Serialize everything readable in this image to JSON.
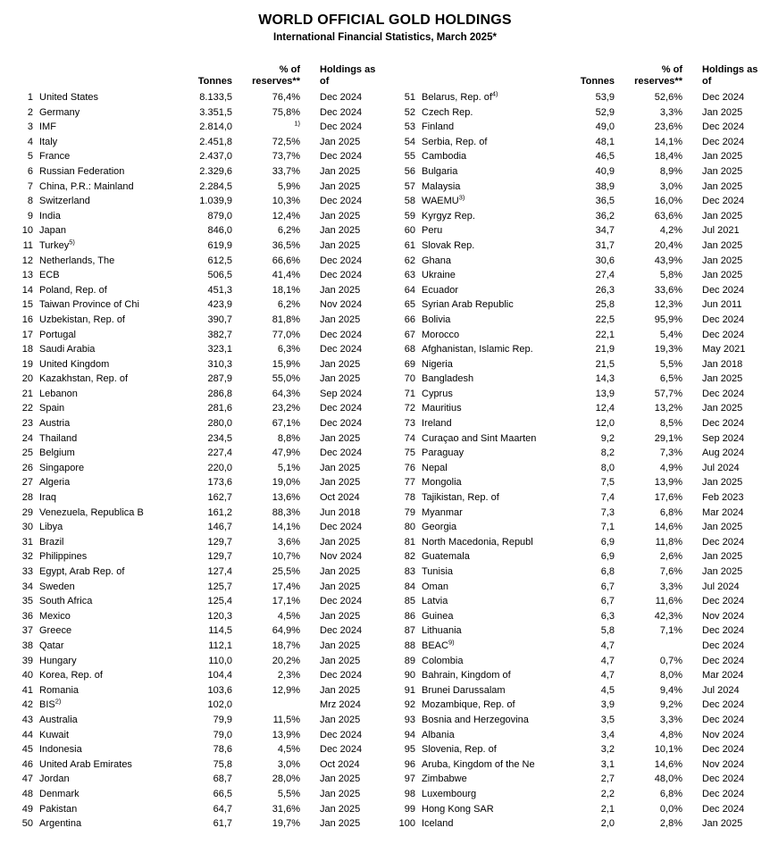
{
  "title": "WORLD OFFICIAL GOLD HOLDINGS",
  "subtitle": "International Financial Statistics, March 2025*",
  "columns": {
    "tonnes": "Tonnes",
    "pct_line1": "% of",
    "pct_line2": "reserves**",
    "holdings_line1": "Holdings as",
    "holdings_line2": "of"
  },
  "row_fields": [
    "rank",
    "name",
    "name_sup",
    "tonnes",
    "pct_reserves",
    "pct_sup",
    "as_of"
  ],
  "left_rows": [
    [
      "1",
      "United States",
      "",
      "8.133,5",
      "76,4%",
      "",
      "Dec 2024"
    ],
    [
      "2",
      "Germany",
      "",
      "3.351,5",
      "75,8%",
      "",
      "Dec 2024"
    ],
    [
      "3",
      "IMF",
      "",
      "2.814,0",
      "",
      "1)",
      "Dec 2024"
    ],
    [
      "4",
      "Italy",
      "",
      "2.451,8",
      "72,5%",
      "",
      "Jan 2025"
    ],
    [
      "5",
      "France",
      "",
      "2.437,0",
      "73,7%",
      "",
      "Dec 2024"
    ],
    [
      "6",
      "Russian Federation",
      "",
      "2.329,6",
      "33,7%",
      "",
      "Jan 2025"
    ],
    [
      "7",
      "China, P.R.: Mainland",
      "",
      "2.284,5",
      "5,9%",
      "",
      "Jan 2025"
    ],
    [
      "8",
      "Switzerland",
      "",
      "1.039,9",
      "10,3%",
      "",
      "Dec 2024"
    ],
    [
      "9",
      "India",
      "",
      "879,0",
      "12,4%",
      "",
      "Jan 2025"
    ],
    [
      "10",
      "Japan",
      "",
      "846,0",
      "6,2%",
      "",
      "Jan 2025"
    ],
    [
      "11",
      "Turkey",
      "5)",
      "619,9",
      "36,5%",
      "",
      "Jan 2025"
    ],
    [
      "12",
      "Netherlands, The",
      "",
      "612,5",
      "66,6%",
      "",
      "Dec 2024"
    ],
    [
      "13",
      "ECB",
      "",
      "506,5",
      "41,4%",
      "",
      "Dec 2024"
    ],
    [
      "14",
      "Poland, Rep. of",
      "",
      "451,3",
      "18,1%",
      "",
      "Jan 2025"
    ],
    [
      "15",
      "Taiwan Province of Chi",
      "",
      "423,9",
      "6,2%",
      "",
      "Nov 2024"
    ],
    [
      "16",
      "Uzbekistan, Rep. of",
      "",
      "390,7",
      "81,8%",
      "",
      "Jan 2025"
    ],
    [
      "17",
      "Portugal",
      "",
      "382,7",
      "77,0%",
      "",
      "Dec 2024"
    ],
    [
      "18",
      "Saudi Arabia",
      "",
      "323,1",
      "6,3%",
      "",
      "Dec 2024"
    ],
    [
      "19",
      "United Kingdom",
      "",
      "310,3",
      "15,9%",
      "",
      "Jan 2025"
    ],
    [
      "20",
      "Kazakhstan, Rep. of",
      "",
      "287,9",
      "55,0%",
      "",
      "Jan 2025"
    ],
    [
      "21",
      "Lebanon",
      "",
      "286,8",
      "64,3%",
      "",
      "Sep 2024"
    ],
    [
      "22",
      "Spain",
      "",
      "281,6",
      "23,2%",
      "",
      "Dec 2024"
    ],
    [
      "23",
      "Austria",
      "",
      "280,0",
      "67,1%",
      "",
      "Dec 2024"
    ],
    [
      "24",
      "Thailand",
      "",
      "234,5",
      "8,8%",
      "",
      "Jan 2025"
    ],
    [
      "25",
      "Belgium",
      "",
      "227,4",
      "47,9%",
      "",
      "Dec 2024"
    ],
    [
      "26",
      "Singapore",
      "",
      "220,0",
      "5,1%",
      "",
      "Jan 2025"
    ],
    [
      "27",
      "Algeria",
      "",
      "173,6",
      "19,0%",
      "",
      "Jan 2025"
    ],
    [
      "28",
      "Iraq",
      "",
      "162,7",
      "13,6%",
      "",
      "Oct 2024"
    ],
    [
      "29",
      "Venezuela, Republica B",
      "",
      "161,2",
      "88,3%",
      "",
      "Jun 2018"
    ],
    [
      "30",
      "Libya",
      "",
      "146,7",
      "14,1%",
      "",
      "Dec 2024"
    ],
    [
      "31",
      "Brazil",
      "",
      "129,7",
      "3,6%",
      "",
      "Jan 2025"
    ],
    [
      "32",
      "Philippines",
      "",
      "129,7",
      "10,7%",
      "",
      "Nov 2024"
    ],
    [
      "33",
      "Egypt, Arab Rep. of",
      "",
      "127,4",
      "25,5%",
      "",
      "Jan 2025"
    ],
    [
      "34",
      "Sweden",
      "",
      "125,7",
      "17,4%",
      "",
      "Jan 2025"
    ],
    [
      "35",
      "South Africa",
      "",
      "125,4",
      "17,1%",
      "",
      "Dec 2024"
    ],
    [
      "36",
      "Mexico",
      "",
      "120,3",
      "4,5%",
      "",
      "Jan 2025"
    ],
    [
      "37",
      "Greece",
      "",
      "114,5",
      "64,9%",
      "",
      "Dec 2024"
    ],
    [
      "38",
      "Qatar",
      "",
      "112,1",
      "18,7%",
      "",
      "Jan 2025"
    ],
    [
      "39",
      "Hungary",
      "",
      "110,0",
      "20,2%",
      "",
      "Jan 2025"
    ],
    [
      "40",
      "Korea, Rep. of",
      "",
      "104,4",
      "2,3%",
      "",
      "Dec 2024"
    ],
    [
      "41",
      "Romania",
      "",
      "103,6",
      "12,9%",
      "",
      "Jan 2025"
    ],
    [
      "42",
      "BIS",
      "2)",
      "102,0",
      "",
      "",
      "Mrz 2024"
    ],
    [
      "43",
      "Australia",
      "",
      "79,9",
      "11,5%",
      "",
      "Jan 2025"
    ],
    [
      "44",
      "Kuwait",
      "",
      "79,0",
      "13,9%",
      "",
      "Dec 2024"
    ],
    [
      "45",
      "Indonesia",
      "",
      "78,6",
      "4,5%",
      "",
      "Dec 2024"
    ],
    [
      "46",
      "United Arab Emirates",
      "",
      "75,8",
      "3,0%",
      "",
      "Oct 2024"
    ],
    [
      "47",
      "Jordan",
      "",
      "68,7",
      "28,0%",
      "",
      "Jan 2025"
    ],
    [
      "48",
      "Denmark",
      "",
      "66,5",
      "5,5%",
      "",
      "Jan 2025"
    ],
    [
      "49",
      "Pakistan",
      "",
      "64,7",
      "31,6%",
      "",
      "Jan 2025"
    ],
    [
      "50",
      "Argentina",
      "",
      "61,7",
      "19,7%",
      "",
      "Jan 2025"
    ]
  ],
  "right_rows": [
    [
      "51",
      "Belarus, Rep. of",
      "4)",
      "53,9",
      "52,6%",
      "",
      "Dec 2024"
    ],
    [
      "52",
      "Czech Rep.",
      "",
      "52,9",
      "3,3%",
      "",
      "Jan 2025"
    ],
    [
      "53",
      "Finland",
      "",
      "49,0",
      "23,6%",
      "",
      "Dec 2024"
    ],
    [
      "54",
      "Serbia, Rep. of",
      "",
      "48,1",
      "14,1%",
      "",
      "Dec 2024"
    ],
    [
      "55",
      "Cambodia",
      "",
      "46,5",
      "18,4%",
      "",
      "Jan 2025"
    ],
    [
      "56",
      "Bulgaria",
      "",
      "40,9",
      "8,9%",
      "",
      "Jan 2025"
    ],
    [
      "57",
      "Malaysia",
      "",
      "38,9",
      "3,0%",
      "",
      "Jan 2025"
    ],
    [
      "58",
      "WAEMU",
      "3)",
      "36,5",
      "16,0%",
      "",
      "Dec 2024"
    ],
    [
      "59",
      "Kyrgyz Rep.",
      "",
      "36,2",
      "63,6%",
      "",
      "Jan 2025"
    ],
    [
      "60",
      "Peru",
      "",
      "34,7",
      "4,2%",
      "",
      "Jul 2021"
    ],
    [
      "61",
      "Slovak Rep.",
      "",
      "31,7",
      "20,4%",
      "",
      "Jan 2025"
    ],
    [
      "62",
      "Ghana",
      "",
      "30,6",
      "43,9%",
      "",
      "Jan 2025"
    ],
    [
      "63",
      "Ukraine",
      "",
      "27,4",
      "5,8%",
      "",
      "Jan 2025"
    ],
    [
      "64",
      "Ecuador",
      "",
      "26,3",
      "33,6%",
      "",
      "Dec 2024"
    ],
    [
      "65",
      "Syrian Arab Republic",
      "",
      "25,8",
      "12,3%",
      "",
      "Jun 2011"
    ],
    [
      "66",
      "Bolivia",
      "",
      "22,5",
      "95,9%",
      "",
      "Dec 2024"
    ],
    [
      "67",
      "Morocco",
      "",
      "22,1",
      "5,4%",
      "",
      "Dec 2024"
    ],
    [
      "68",
      "Afghanistan, Islamic Rep.",
      "",
      "21,9",
      "19,3%",
      "",
      "May 2021"
    ],
    [
      "69",
      "Nigeria",
      "",
      "21,5",
      "5,5%",
      "",
      "Jan 2018"
    ],
    [
      "70",
      "Bangladesh",
      "",
      "14,3",
      "6,5%",
      "",
      "Jan 2025"
    ],
    [
      "71",
      "Cyprus",
      "",
      "13,9",
      "57,7%",
      "",
      "Dec 2024"
    ],
    [
      "72",
      "Mauritius",
      "",
      "12,4",
      "13,2%",
      "",
      "Jan 2025"
    ],
    [
      "73",
      "Ireland",
      "",
      "12,0",
      "8,5%",
      "",
      "Dec 2024"
    ],
    [
      "74",
      "Curaçao and Sint Maarten",
      "",
      "9,2",
      "29,1%",
      "",
      "Sep 2024"
    ],
    [
      "75",
      "Paraguay",
      "",
      "8,2",
      "7,3%",
      "",
      "Aug 2024"
    ],
    [
      "76",
      "Nepal",
      "",
      "8,0",
      "4,9%",
      "",
      "Jul 2024"
    ],
    [
      "77",
      "Mongolia",
      "",
      "7,5",
      "13,9%",
      "",
      "Jan 2025"
    ],
    [
      "78",
      "Tajikistan, Rep. of",
      "",
      "7,4",
      "17,6%",
      "",
      "Feb 2023"
    ],
    [
      "79",
      "Myanmar",
      "",
      "7,3",
      "6,8%",
      "",
      "Mar 2024"
    ],
    [
      "80",
      "Georgia",
      "",
      "7,1",
      "14,6%",
      "",
      "Jan 2025"
    ],
    [
      "81",
      "North Macedonia, Republ",
      "",
      "6,9",
      "11,8%",
      "",
      "Dec 2024"
    ],
    [
      "82",
      "Guatemala",
      "",
      "6,9",
      "2,6%",
      "",
      "Jan 2025"
    ],
    [
      "83",
      "Tunisia",
      "",
      "6,8",
      "7,6%",
      "",
      "Jan 2025"
    ],
    [
      "84",
      "Oman",
      "",
      "6,7",
      "3,3%",
      "",
      "Jul 2024"
    ],
    [
      "85",
      "Latvia",
      "",
      "6,7",
      "11,6%",
      "",
      "Dec 2024"
    ],
    [
      "86",
      "Guinea",
      "",
      "6,3",
      "42,3%",
      "",
      "Nov 2024"
    ],
    [
      "87",
      "Lithuania",
      "",
      "5,8",
      "7,1%",
      "",
      "Dec 2024"
    ],
    [
      "88",
      "BEAC",
      "9)",
      "4,7",
      "",
      "",
      "Dec 2024"
    ],
    [
      "89",
      "Colombia",
      "",
      "4,7",
      "0,7%",
      "",
      "Dec 2024"
    ],
    [
      "90",
      "Bahrain, Kingdom of",
      "",
      "4,7",
      "8,0%",
      "",
      "Mar 2024"
    ],
    [
      "91",
      "Brunei Darussalam",
      "",
      "4,5",
      "9,4%",
      "",
      "Jul 2024"
    ],
    [
      "92",
      "Mozambique, Rep. of",
      "",
      "3,9",
      "9,2%",
      "",
      "Dec 2024"
    ],
    [
      "93",
      "Bosnia and Herzegovina",
      "",
      "3,5",
      "3,3%",
      "",
      "Dec 2024"
    ],
    [
      "94",
      "Albania",
      "",
      "3,4",
      "4,8%",
      "",
      "Nov 2024"
    ],
    [
      "95",
      "Slovenia, Rep. of",
      "",
      "3,2",
      "10,1%",
      "",
      "Dec 2024"
    ],
    [
      "96",
      "Aruba, Kingdom of the Ne",
      "",
      "3,1",
      "14,6%",
      "",
      "Nov 2024"
    ],
    [
      "97",
      "Zimbabwe",
      "",
      "2,7",
      "48,0%",
      "",
      "Dec 2024"
    ],
    [
      "98",
      "Luxembourg",
      "",
      "2,2",
      "6,8%",
      "",
      "Dec 2024"
    ],
    [
      "99",
      "Hong Kong SAR",
      "",
      "2,1",
      "0,0%",
      "",
      "Dec 2024"
    ],
    [
      "100",
      "Iceland",
      "",
      "2,0",
      "2,8%",
      "",
      "Jan 2025"
    ]
  ]
}
